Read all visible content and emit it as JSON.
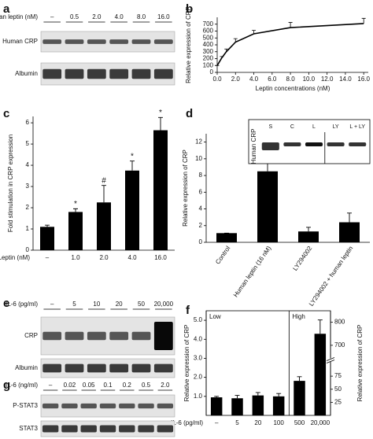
{
  "chart_data": [
    {
      "panel": "b",
      "type": "line",
      "xlabel": "Leptin concentrations (nM)",
      "ylabel": "Relative expression of CRP",
      "x": [
        0,
        0.5,
        1,
        2,
        4,
        8,
        16
      ],
      "series": [
        {
          "color": "#000000",
          "values": [
            100,
            210,
            300,
            440,
            560,
            650,
            710
          ],
          "errors": [
            0,
            20,
            40,
            50,
            50,
            75,
            75
          ]
        }
      ],
      "xlim": [
        0,
        16.5
      ],
      "ylim": [
        0,
        800
      ],
      "xticks": [
        {
          "value": 0,
          "label": "0.0"
        },
        {
          "value": 2,
          "label": "2.0"
        },
        {
          "value": 4,
          "label": "4.0"
        },
        {
          "value": 6,
          "label": "6.0"
        },
        {
          "value": 8,
          "label": "8.0"
        },
        {
          "value": 10,
          "label": "10.0"
        },
        {
          "value": 12,
          "label": "12.0"
        },
        {
          "value": 14,
          "label": "14.0"
        },
        {
          "value": 16,
          "label": "16.0"
        }
      ],
      "yticks": [
        0,
        100,
        200,
        300,
        400,
        500,
        600,
        700
      ]
    },
    {
      "panel": "c",
      "type": "bar",
      "xlabel": "Leptin (nM)",
      "ylabel": "Fold stimulation in CRP expression",
      "categories": [
        "–",
        "1.0",
        "2.0",
        "4.0",
        "16.0"
      ],
      "series": [
        {
          "color": "#000000",
          "values": [
            1.1,
            1.8,
            2.25,
            3.75,
            5.65
          ],
          "errors": [
            0.08,
            0.15,
            0.8,
            0.45,
            0.6
          ],
          "annotations": [
            null,
            "*",
            "#",
            "*",
            "*"
          ]
        }
      ],
      "ylim": [
        0,
        6.3
      ],
      "yticks": [
        0,
        1,
        2,
        3,
        4,
        5,
        6
      ]
    },
    {
      "panel": "d",
      "type": "bar",
      "ylabel": "Relative expression of CRP",
      "categories": [
        "Control",
        "Human leptin (16 nM)",
        "LY294002",
        "LY294002 + human leptin"
      ],
      "series": [
        {
          "color": "#000000",
          "values": [
            1.1,
            8.5,
            1.3,
            2.4
          ],
          "errors": [
            0,
            2.8,
            0.5,
            1.1
          ],
          "annotations": [
            null,
            "*",
            null,
            null
          ]
        }
      ],
      "ylim": [
        0,
        13
      ],
      "yticks": [
        0,
        2,
        4,
        6,
        8,
        10,
        12
      ],
      "inset": {
        "lanes": [
          "S",
          "C",
          "L",
          "LY",
          "L + LY"
        ],
        "row": "Human CRP"
      }
    },
    {
      "panel": "f",
      "type": "bar",
      "xlabel": "IL-6 (pg/ml)",
      "ylabel": "Relative expression of CRP",
      "y2label": "Relative expression of CRP",
      "sections": [
        "Low",
        "High"
      ],
      "categories": [
        "–",
        "5",
        "20",
        "100",
        "500",
        "20,000"
      ],
      "series": [
        {
          "color": "#000000",
          "values": [
            0.95,
            0.9,
            1.05,
            1.0,
            null,
            null
          ],
          "errors": [
            0.05,
            0.15,
            0.15,
            0.15,
            null,
            null
          ]
        },
        {
          "color": "#000000",
          "axis": "y2",
          "values": [
            null,
            null,
            null,
            null,
            66,
            750
          ],
          "errors": [
            null,
            null,
            null,
            null,
            8,
            60
          ]
        }
      ],
      "ylim": [
        0,
        5.5
      ],
      "yticks": [
        {
          "value": 1,
          "label": "1.0"
        },
        {
          "value": 2,
          "label": "2.0"
        },
        {
          "value": 3,
          "label": "3.0"
        },
        {
          "value": 4,
          "label": "4.0"
        },
        {
          "value": 5,
          "label": "5.0"
        }
      ],
      "y2lim": [
        0,
        850
      ],
      "y2break": [
        100,
        650
      ],
      "y2ticks": [
        25,
        50,
        75,
        700,
        800
      ]
    }
  ],
  "blots": [
    {
      "panel": "a",
      "treatment": "Human leptin (nM)",
      "lanes": [
        "–",
        "0.5",
        "2.0",
        "4.0",
        "8.0",
        "16.0"
      ],
      "rows": [
        "Human CRP",
        "Albumin"
      ]
    },
    {
      "panel": "e",
      "treatment": "IL-6 (pg/ml)",
      "lanes": [
        "–",
        "5",
        "10",
        "20",
        "50",
        "20,000"
      ],
      "rows": [
        "CRP",
        "Albumin"
      ]
    },
    {
      "panel": "g",
      "treatment": "IL-6 (ng/ml)",
      "lanes": [
        "–",
        "0.02",
        "0.05",
        "0.1",
        "0.2",
        "0.5",
        "2.0"
      ],
      "rows": [
        "P-STAT3",
        "STAT3"
      ]
    }
  ]
}
